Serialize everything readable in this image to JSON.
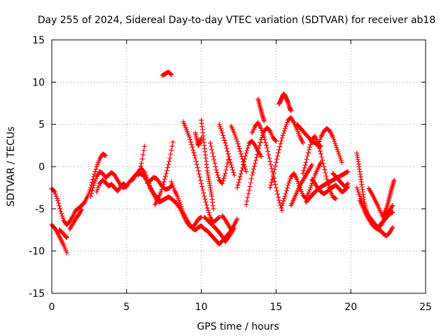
{
  "chart_data": {
    "type": "scatter",
    "title": "Day 255 of 2024, Sidereal Day-to-day VTEC variation (SDTVAR) for receiver ab18",
    "xlabel": "GPS time / hours",
    "ylabel": "SDTVAR / TECUs",
    "xlim": [
      0,
      25
    ],
    "ylim": [
      -15,
      15
    ],
    "xticks": [
      0,
      5,
      10,
      15,
      20,
      25
    ],
    "yticks": [
      -15,
      -10,
      -5,
      0,
      5,
      10,
      15
    ],
    "grid": true,
    "marker": "plus",
    "color": "#ff0000",
    "series": [
      {
        "name": "s1",
        "x": [
          0.0,
          0.2,
          0.4,
          0.6,
          0.8,
          1.0,
          1.2,
          1.4,
          1.6,
          1.8,
          2.0,
          2.2,
          2.4,
          2.6,
          2.8,
          3.0,
          3.2,
          3.4,
          3.6
        ],
        "y": [
          -2.6,
          -3.0,
          -4.0,
          -5.3,
          -6.4,
          -6.9,
          -6.5,
          -5.9,
          -5.2,
          -4.9,
          -4.6,
          -4.2,
          -3.5,
          -2.5,
          -1.2,
          0.0,
          0.9,
          1.5,
          1.3
        ]
      },
      {
        "name": "s2",
        "x": [
          0.0,
          0.2,
          0.4,
          0.6,
          0.8,
          1.0
        ],
        "y": [
          -6.9,
          -7.3,
          -7.9,
          -8.6,
          -9.3,
          -10.2
        ]
      },
      {
        "name": "s3",
        "x": [
          1.2,
          1.4,
          1.6,
          1.8,
          2.0
        ],
        "y": [
          -7.4,
          -6.8,
          -6.2,
          -5.7,
          -5.1
        ]
      },
      {
        "name": "s4",
        "x": [
          0.5,
          0.7,
          0.9,
          1.0
        ],
        "y": [
          -7.5,
          -7.8,
          -8.2,
          -8.4
        ]
      },
      {
        "name": "s5",
        "x": [
          2.6,
          2.8,
          3.0,
          3.2,
          3.4,
          3.6,
          3.8,
          4.0,
          4.2,
          4.4,
          4.6,
          4.8,
          5.0,
          5.2,
          5.4,
          5.6,
          5.8,
          6.0,
          6.2,
          6.4,
          6.6,
          6.8,
          7.0,
          7.2
        ],
        "y": [
          -3.5,
          -2.2,
          -1.2,
          -0.6,
          -0.8,
          -1.3,
          -1.0,
          -0.7,
          -1.0,
          -1.6,
          -2.2,
          -2.5,
          -2.3,
          -1.8,
          -1.4,
          -1.0,
          -0.8,
          -0.9,
          -1.2,
          -1.8,
          -2.6,
          -3.2,
          -3.6,
          -3.9
        ]
      },
      {
        "name": "s6",
        "x": [
          3.0,
          3.2,
          3.4,
          3.6,
          3.8,
          4.0,
          4.2,
          4.4,
          4.6,
          4.8,
          5.0
        ],
        "y": [
          -3.0,
          -2.0,
          -1.6,
          -1.9,
          -2.3,
          -2.1,
          -2.5,
          -2.9,
          -2.4,
          -2.0,
          -2.4
        ]
      },
      {
        "name": "s7",
        "x": [
          5.4,
          5.6,
          5.8,
          6.0,
          6.2,
          6.4,
          6.6,
          6.8,
          7.0,
          7.2,
          7.4,
          7.6,
          7.8,
          8.0,
          8.2,
          8.4,
          8.6,
          8.8,
          9.0,
          9.2,
          9.4,
          9.6,
          9.8,
          10.0
        ],
        "y": [
          -1.6,
          -1.0,
          -0.6,
          -0.2,
          -0.7,
          -1.5,
          -2.5,
          -3.2,
          -3.9,
          -4.2,
          -4.0,
          -3.8,
          -3.6,
          -3.8,
          -4.1,
          -4.5,
          -5.0,
          -5.8,
          -6.5,
          -7.0,
          -7.2,
          -6.8,
          -6.2,
          -6.0
        ]
      },
      {
        "name": "s8",
        "x": [
          6.4,
          6.6,
          6.8,
          7.0,
          7.2,
          7.4,
          7.6,
          7.8,
          8.0
        ],
        "y": [
          -2.0,
          -1.6,
          -1.3,
          -1.4,
          -1.9,
          -2.4,
          -2.7,
          -2.6,
          -2.3
        ]
      },
      {
        "name": "s9",
        "x": [
          5.8,
          6.0,
          6.2
        ],
        "y": [
          -1.0,
          0.4,
          2.4
        ]
      },
      {
        "name": "s10",
        "x": [
          6.9,
          7.1,
          7.3,
          7.5,
          7.7,
          7.9,
          8.1
        ],
        "y": [
          -4.5,
          -3.8,
          -3.0,
          -1.8,
          -0.5,
          1.0,
          2.9
        ]
      },
      {
        "name": "s11",
        "x": [
          7.4,
          7.6,
          7.8,
          8.0
        ],
        "y": [
          10.8,
          11.0,
          11.2,
          10.9
        ]
      },
      {
        "name": "s12",
        "x": [
          8.0,
          8.2,
          8.4,
          8.6,
          8.8,
          9.0,
          9.2,
          9.4,
          9.6,
          9.8,
          10.0,
          10.2,
          10.4,
          10.6,
          10.8,
          11.0,
          11.2,
          11.4,
          11.6,
          11.8,
          12.0
        ],
        "y": [
          -1.8,
          -2.8,
          -3.5,
          -4.5,
          -5.5,
          -6.2,
          -6.8,
          -7.3,
          -7.5,
          -7.2,
          -7.0,
          -7.4,
          -7.6,
          -8.0,
          -8.4,
          -8.8,
          -9.2,
          -8.8,
          -8.4,
          -8.0,
          -7.6
        ]
      },
      {
        "name": "s13",
        "x": [
          8.8,
          9.0,
          9.2,
          9.4,
          9.6,
          9.8,
          10.0,
          10.2,
          10.4,
          10.6,
          10.8,
          11.0,
          11.2
        ],
        "y": [
          5.3,
          4.4,
          3.5,
          2.3,
          1.0,
          -0.5,
          -2.0,
          -3.5,
          -4.9,
          -6.0,
          -6.6,
          -6.3,
          -6.0
        ]
      },
      {
        "name": "s14",
        "x": [
          10.2,
          10.4,
          10.6,
          10.8,
          11.0,
          11.2,
          11.4,
          11.6,
          11.8,
          12.0,
          12.2
        ],
        "y": [
          -6.0,
          -6.3,
          -6.7,
          -7.0,
          -7.4,
          -7.8,
          -8.3,
          -8.9,
          -8.4,
          -7.9,
          -7.3
        ]
      },
      {
        "name": "s15",
        "x": [
          11.4,
          11.6,
          11.8,
          12.0,
          12.2,
          12.4
        ],
        "y": [
          -5.8,
          -6.3,
          -6.9,
          -7.5,
          -6.9,
          -6.2
        ]
      },
      {
        "name": "s16",
        "x": [
          10.0,
          10.1,
          10.2,
          10.3,
          10.4,
          10.5,
          10.6,
          10.7,
          10.8
        ],
        "y": [
          5.5,
          4.0,
          2.5,
          1.0,
          -0.5,
          -1.5,
          -2.5,
          -3.5,
          -5.0
        ]
      },
      {
        "name": "s17",
        "x": [
          9.6,
          9.7,
          9.8,
          9.9,
          10.0
        ],
        "y": [
          4.0,
          3.2,
          2.5,
          2.8,
          3.4
        ]
      },
      {
        "name": "s18",
        "x": [
          10.6,
          10.8,
          11.0,
          11.2,
          11.4,
          11.6,
          11.8
        ],
        "y": [
          2.8,
          1.2,
          -0.4,
          -1.6,
          -2.0,
          -0.8,
          0.8
        ]
      },
      {
        "name": "s19",
        "x": [
          11.2,
          11.4,
          11.6,
          11.8,
          12.0,
          12.2
        ],
        "y": [
          5.0,
          4.0,
          2.8,
          1.5,
          0.2,
          -1.0
        ]
      },
      {
        "name": "s20",
        "x": [
          12.0,
          12.2,
          12.4,
          12.6,
          12.8,
          13.0
        ],
        "y": [
          4.8,
          4.0,
          3.0,
          1.8,
          0.6,
          -0.6
        ]
      },
      {
        "name": "s21",
        "x": [
          12.4,
          12.6,
          12.8,
          13.0,
          13.2,
          13.4,
          13.6,
          13.8,
          14.0
        ],
        "y": [
          -2.5,
          -1.2,
          0.2,
          1.6,
          2.8,
          3.0,
          2.5,
          1.8,
          1.2
        ]
      },
      {
        "name": "s22",
        "x": [
          13.0,
          13.2,
          13.4,
          13.6,
          13.8,
          14.0,
          14.2,
          14.4,
          14.6,
          14.8,
          15.0
        ],
        "y": [
          -4.5,
          -2.8,
          -1.0,
          0.4,
          1.8,
          3.2,
          4.2,
          4.6,
          4.2,
          3.4,
          3.0
        ]
      },
      {
        "name": "s23",
        "x": [
          13.4,
          13.6,
          13.8,
          14.0,
          14.2,
          14.4,
          14.6,
          14.8,
          15.0,
          15.2,
          15.4
        ],
        "y": [
          4.0,
          4.8,
          5.2,
          4.5,
          3.5,
          2.2,
          0.6,
          -1.0,
          -2.5,
          -4.0,
          -5.2
        ]
      },
      {
        "name": "s24",
        "x": [
          13.8,
          13.9,
          14.0,
          14.1,
          14.2
        ],
        "y": [
          8.0,
          7.3,
          6.6,
          6.0,
          5.4
        ]
      },
      {
        "name": "s25",
        "x": [
          15.2,
          15.3,
          15.4,
          15.5,
          15.6,
          15.7,
          15.8,
          15.9,
          16.0
        ],
        "y": [
          7.4,
          7.8,
          8.2,
          8.6,
          8.4,
          8.0,
          7.6,
          7.0,
          6.6
        ]
      },
      {
        "name": "s26",
        "x": [
          14.6,
          14.8,
          15.0,
          15.2,
          15.4,
          15.6,
          15.8,
          16.0,
          16.2,
          16.4,
          16.6,
          16.8
        ],
        "y": [
          -2.5,
          -1.2,
          0.5,
          2.0,
          3.4,
          4.5,
          5.5,
          5.8,
          5.2,
          4.4,
          3.5,
          2.8
        ]
      },
      {
        "name": "s27",
        "x": [
          15.4,
          15.6,
          15.8,
          16.0,
          16.2,
          16.4,
          16.6,
          16.8,
          17.0,
          17.2,
          17.4,
          17.6,
          17.8,
          18.0
        ],
        "y": [
          -4.6,
          -3.5,
          -2.2,
          -1.2,
          -0.8,
          -1.5,
          -2.5,
          -3.4,
          -3.8,
          -3.0,
          -2.0,
          -1.0,
          -0.2,
          0.5
        ]
      },
      {
        "name": "s28",
        "x": [
          16.4,
          16.6,
          16.8,
          17.0,
          17.2,
          17.4,
          17.6,
          17.8,
          18.0
        ],
        "y": [
          5.0,
          4.6,
          4.2,
          3.8,
          3.4,
          3.0,
          2.8,
          2.6,
          2.4
        ]
      },
      {
        "name": "s29",
        "x": [
          16.8,
          17.0,
          17.2,
          17.4,
          17.6,
          17.8,
          18.0,
          18.2,
          18.4,
          18.6,
          18.8,
          19.0
        ],
        "y": [
          -0.8,
          0.5,
          2.0,
          3.2,
          3.6,
          2.8,
          1.5,
          0.0,
          -1.5,
          -2.8,
          -3.6,
          -3.8
        ]
      },
      {
        "name": "s30",
        "x": [
          17.0,
          17.2,
          17.4,
          17.6,
          17.8,
          18.0,
          18.2,
          18.4,
          18.6,
          18.8,
          19.0,
          19.2,
          19.4,
          19.6,
          19.8
        ],
        "y": [
          -4.2,
          -3.8,
          -3.4,
          -3.0,
          -2.7,
          -2.4,
          -2.2,
          -2.0,
          -1.8,
          -1.6,
          -1.4,
          -1.2,
          -1.0,
          -0.8,
          -0.6
        ]
      },
      {
        "name": "s31",
        "x": [
          17.4,
          17.6,
          17.8,
          18.0,
          18.2,
          18.4,
          18.6,
          18.8,
          19.0,
          19.2,
          19.4,
          19.6,
          19.8
        ],
        "y": [
          -1.5,
          -2.0,
          -2.6,
          -3.0,
          -3.2,
          -3.0,
          -2.6,
          -2.4,
          -2.2,
          -2.6,
          -3.0,
          -2.8,
          -2.4
        ]
      },
      {
        "name": "s32",
        "x": [
          17.8,
          18.0,
          18.2,
          18.4,
          18.6,
          18.8,
          19.0,
          19.2,
          19.4
        ],
        "y": [
          2.4,
          3.5,
          4.2,
          4.5,
          4.2,
          3.5,
          2.5,
          1.5,
          0.5
        ]
      },
      {
        "name": "s33",
        "x": [
          16.0,
          16.2,
          16.4,
          16.6,
          16.8,
          17.0,
          17.2,
          17.4
        ],
        "y": [
          -4.6,
          -3.8,
          -3.0,
          -2.2,
          -1.6,
          -1.0,
          -0.4,
          0.2
        ]
      },
      {
        "name": "s34",
        "x": [
          18.8,
          19.0,
          19.2,
          19.4,
          19.6,
          19.8
        ],
        "y": [
          -0.8,
          -1.2,
          -1.6,
          -2.0,
          -2.4,
          -2.0
        ]
      },
      {
        "name": "s35",
        "x": [
          20.4,
          20.5,
          20.6,
          20.7,
          20.8,
          20.9,
          21.0,
          21.1,
          21.2,
          21.4
        ],
        "y": [
          1.6,
          0.6,
          -0.6,
          -1.8,
          -3.0,
          -4.2,
          -5.0,
          -5.6,
          -6.2,
          -6.8
        ]
      },
      {
        "name": "s36",
        "x": [
          20.4,
          20.6,
          20.8,
          21.0,
          21.2,
          21.4,
          21.6,
          21.8,
          22.0,
          22.2,
          22.4,
          22.6,
          22.8
        ],
        "y": [
          -2.5,
          -3.5,
          -4.6,
          -5.4,
          -5.9,
          -6.3,
          -6.8,
          -7.2,
          -7.0,
          -6.4,
          -5.8,
          -5.2,
          -4.6
        ]
      },
      {
        "name": "s37",
        "x": [
          20.6,
          20.8,
          21.0,
          21.2,
          21.4,
          21.6,
          21.8,
          22.0,
          22.2,
          22.4,
          22.6,
          22.8
        ],
        "y": [
          -4.0,
          -4.8,
          -5.6,
          -6.2,
          -6.8,
          -7.2,
          -7.4,
          -7.6,
          -8.0,
          -8.2,
          -7.8,
          -7.2
        ]
      },
      {
        "name": "s38",
        "x": [
          21.2,
          21.4,
          21.6,
          21.8,
          22.0,
          22.2
        ],
        "y": [
          -2.6,
          -3.2,
          -3.9,
          -4.6,
          -5.4,
          -6.2
        ]
      },
      {
        "name": "s39",
        "x": [
          22.2,
          22.3,
          22.4,
          22.5,
          22.6,
          22.7,
          22.8,
          22.9
        ],
        "y": [
          -5.8,
          -5.4,
          -4.9,
          -4.2,
          -3.5,
          -2.8,
          -2.2,
          -1.6
        ]
      },
      {
        "name": "s40",
        "x": [
          22.0,
          22.2,
          22.4,
          22.6,
          22.8
        ],
        "y": [
          -6.8,
          -6.4,
          -6.0,
          -5.6,
          -5.4
        ]
      }
    ]
  }
}
